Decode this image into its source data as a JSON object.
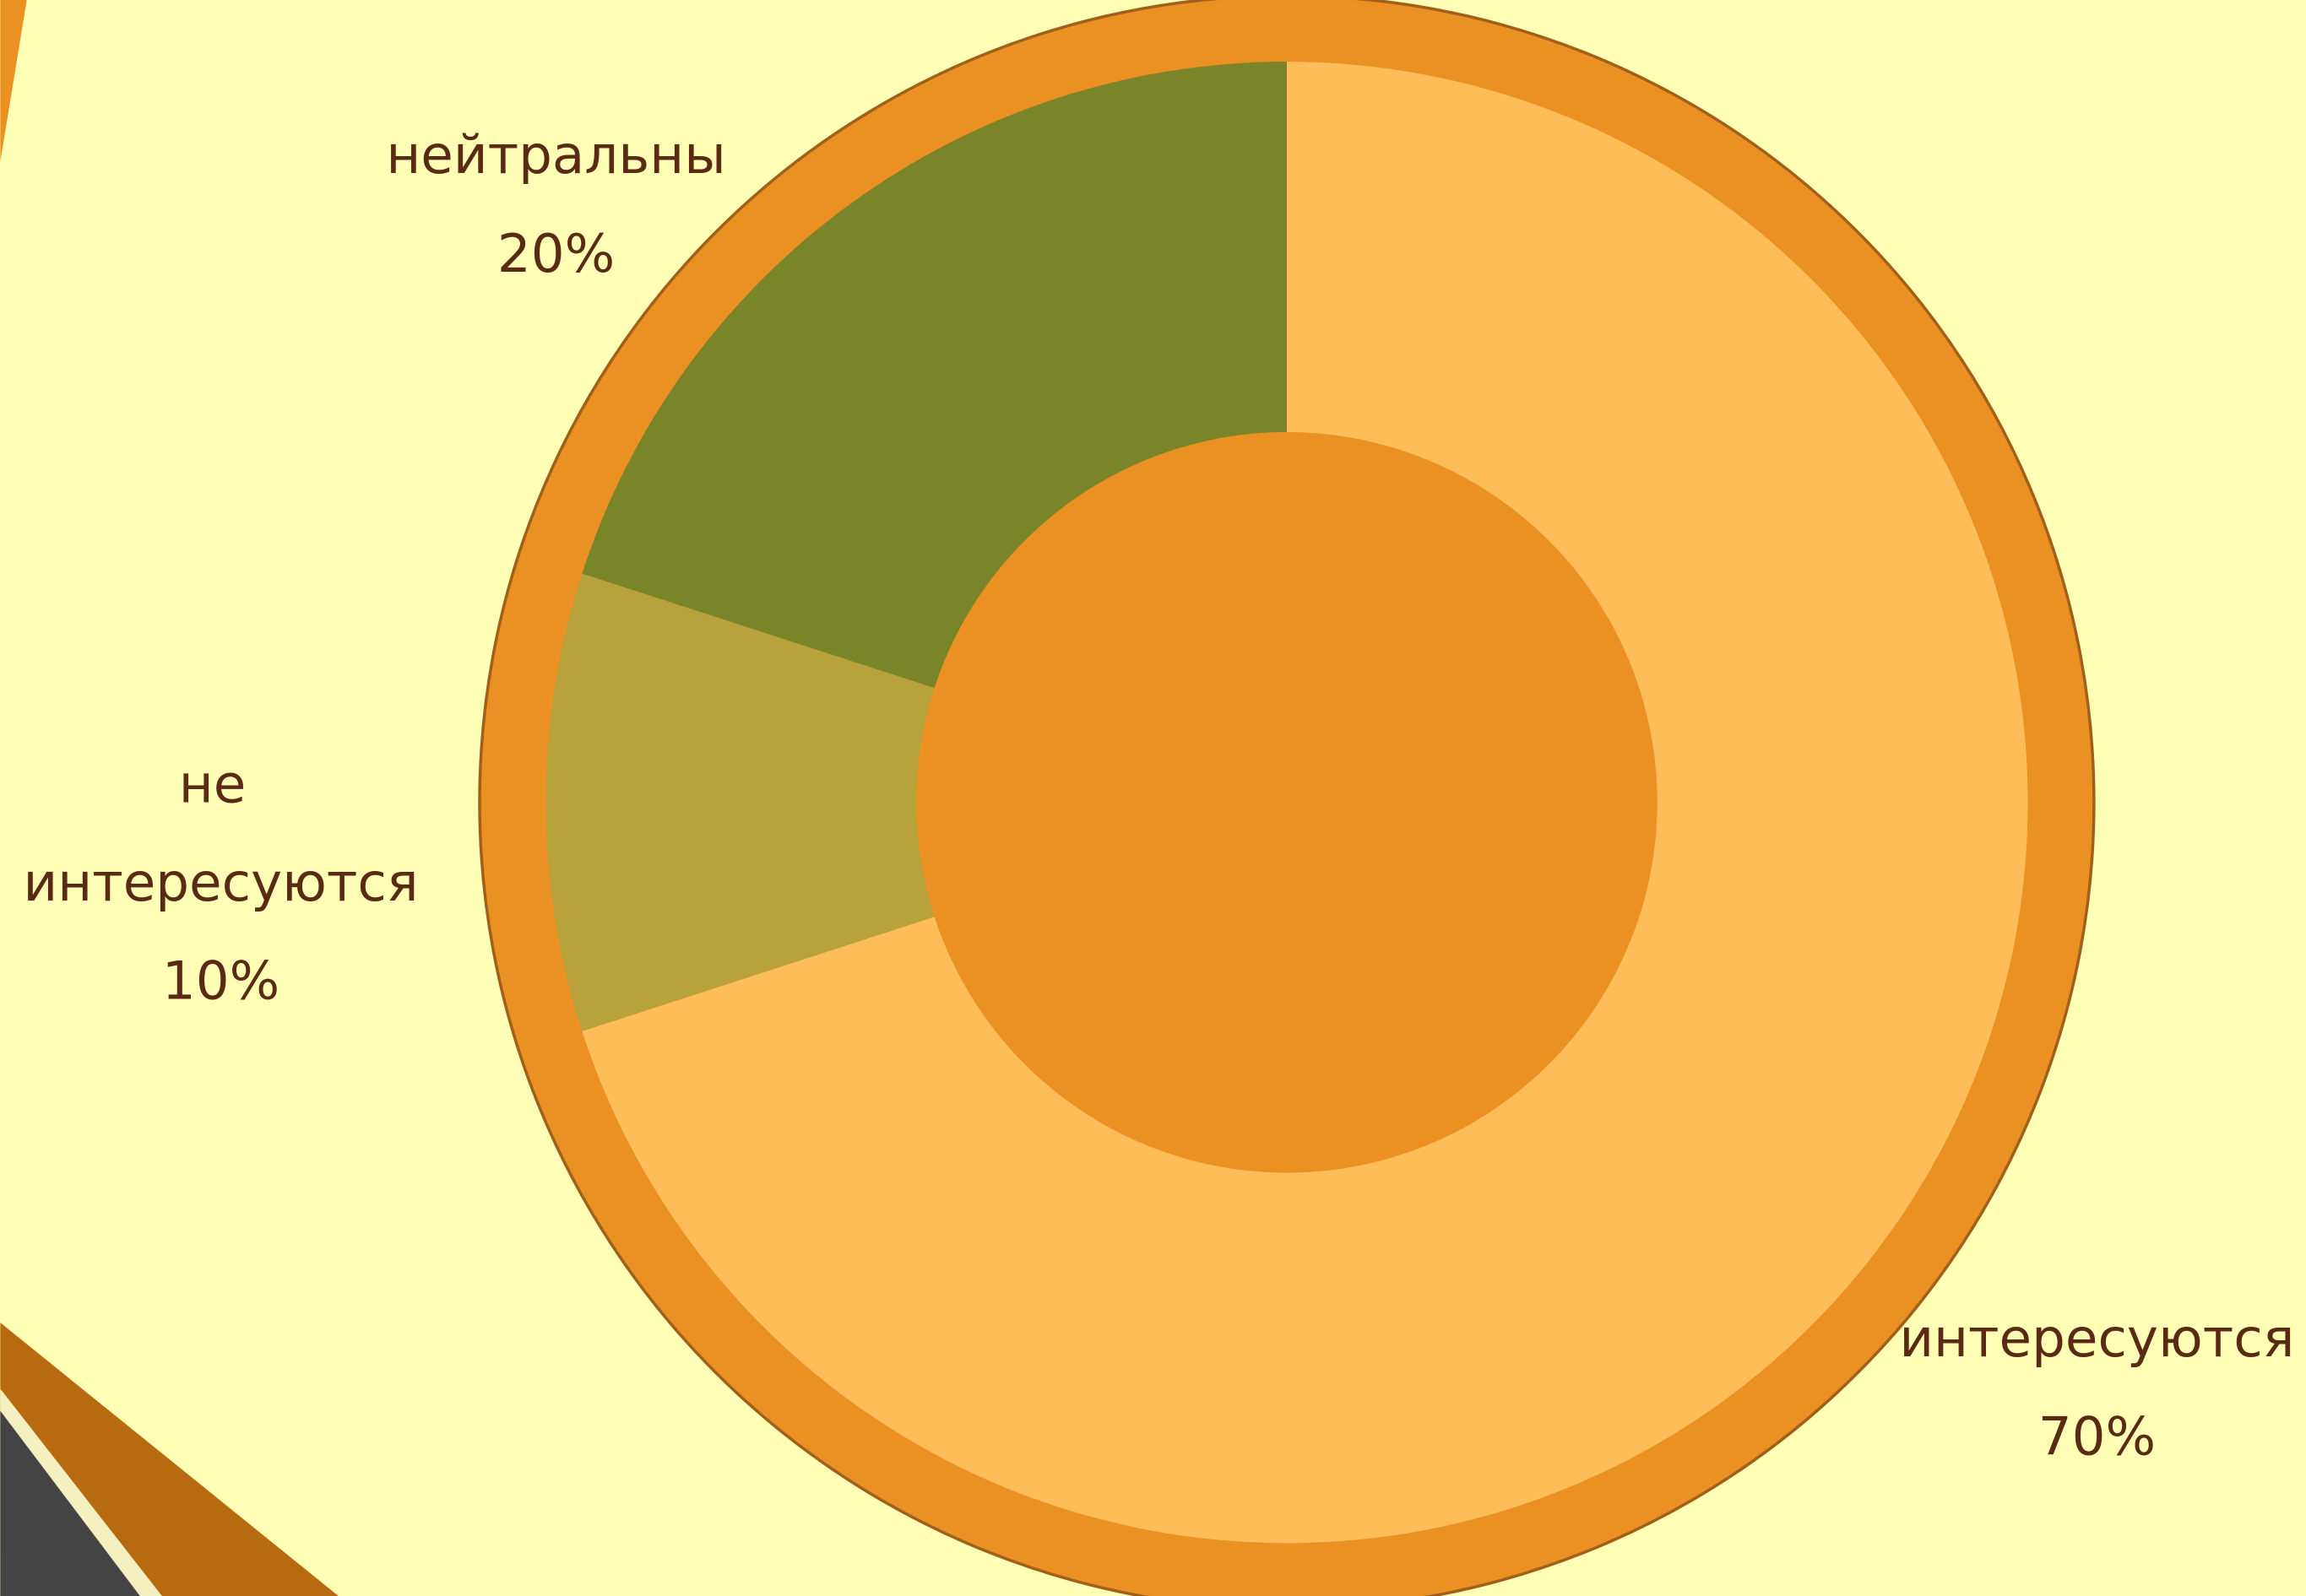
{
  "chart_data": {
    "type": "donut",
    "categories": [
      "интересуются",
      "не интересуются",
      "нейтральны"
    ],
    "values": [
      70,
      10,
      20
    ],
    "value_labels": [
      "70%",
      "10%",
      "20%"
    ],
    "colors": [
      "#ffbd59",
      "#b8a23c",
      "#7a8428"
    ]
  }
}
